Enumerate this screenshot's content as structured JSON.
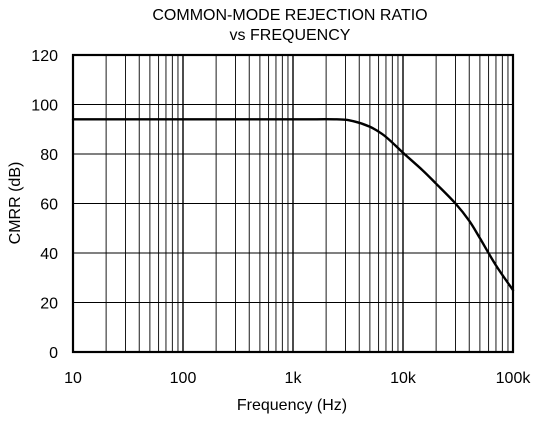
{
  "chart_data": {
    "type": "line",
    "title_lines": [
      "COMMON-MODE REJECTION RATIO",
      "vs FREQUENCY"
    ],
    "xlabel": "Frequency (Hz)",
    "ylabel": "CMRR (dB)",
    "x_scale": "log",
    "xlim": [
      10,
      100000
    ],
    "ylim": [
      0,
      120
    ],
    "x_ticks": [
      {
        "value": 10,
        "label": "10"
      },
      {
        "value": 100,
        "label": "100"
      },
      {
        "value": 1000,
        "label": "1k"
      },
      {
        "value": 10000,
        "label": "10k"
      },
      {
        "value": 100000,
        "label": "100k"
      }
    ],
    "y_ticks": [
      {
        "value": 0,
        "label": "0"
      },
      {
        "value": 20,
        "label": "20"
      },
      {
        "value": 40,
        "label": "40"
      },
      {
        "value": 60,
        "label": "60"
      },
      {
        "value": 80,
        "label": "80"
      },
      {
        "value": 100,
        "label": "100"
      },
      {
        "value": 120,
        "label": "120"
      }
    ],
    "grid": true,
    "series": [
      {
        "x": [
          10,
          100,
          1000,
          2500,
          3500,
          5000,
          6500,
          8000,
          10000,
          15000,
          20000,
          30000,
          40000,
          50000,
          70000,
          100000
        ],
        "y": [
          94,
          94,
          94,
          94,
          93.3,
          91,
          88,
          84.6,
          80.5,
          73.5,
          68,
          60,
          53,
          46,
          35,
          25
        ]
      }
    ]
  }
}
